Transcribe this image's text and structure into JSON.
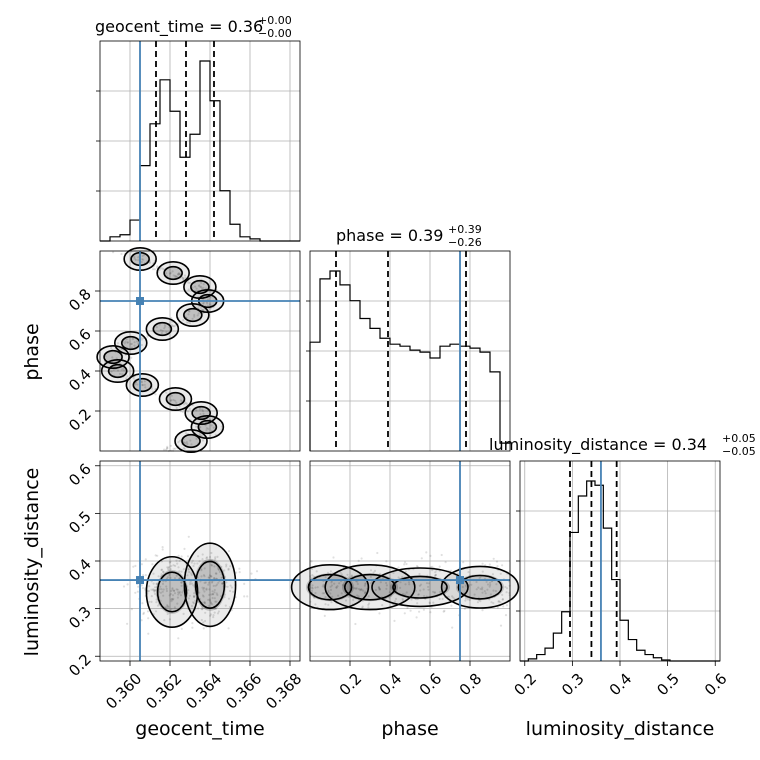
{
  "chart_data": {
    "type": "corner",
    "parameters": [
      "geocent_time",
      "phase",
      "luminosity_distance"
    ],
    "truths": {
      "geocent_time": 0.3605,
      "phase": 0.75,
      "luminosity_distance": 0.36
    },
    "titles": {
      "geocent_time": {
        "text": "geocent_time = 0.36",
        "plus": "+0.00",
        "minus": "−0.00"
      },
      "phase": {
        "text": "phase = 0.39",
        "plus": "+0.39",
        "minus": "−0.26"
      },
      "luminosity_distance": {
        "text": "luminosity_distance = 0.34",
        "plus": "+0.05",
        "minus": "−0.05"
      }
    },
    "axes": {
      "geocent_time": {
        "lim": [
          0.3585,
          0.3685
        ],
        "ticks": [
          0.36,
          0.362,
          0.364,
          0.366,
          0.368
        ],
        "tick_labels": [
          "0.360",
          "0.362",
          "0.364",
          "0.366",
          "0.368"
        ]
      },
      "phase": {
        "lim": [
          0.0,
          1.0
        ],
        "ticks_x": [
          0.2,
          0.4,
          0.6,
          0.8
        ],
        "ticks_y": [
          0.2,
          0.4,
          0.6,
          0.8
        ],
        "tick_labels": [
          "0.2",
          "0.4",
          "0.6",
          "0.8"
        ]
      },
      "luminosity_distance": {
        "lim": [
          0.19,
          0.61
        ],
        "ticks": [
          0.2,
          0.3,
          0.4,
          0.5,
          0.6
        ],
        "tick_labels": [
          "0.2",
          "0.3",
          "0.4",
          "0.5",
          "0.6"
        ]
      }
    },
    "quantiles": {
      "geocent_time": [
        0.3613,
        0.3628,
        0.3642
      ],
      "phase": [
        0.13,
        0.39,
        0.78
      ],
      "luminosity_distance": [
        0.295,
        0.34,
        0.393
      ]
    },
    "histograms": {
      "geocent_time": {
        "edges_start": 0.3585,
        "bin_width": 0.0005,
        "counts": [
          0,
          0.02,
          0.03,
          0.1,
          0.36,
          0.56,
          0.77,
          0.62,
          0.4,
          0.51,
          0.86,
          0.67,
          0.24,
          0.08,
          0.02,
          0.01,
          0,
          0,
          0,
          0
        ]
      },
      "phase": {
        "edges_start": 0.0,
        "bin_width": 0.05,
        "counts": [
          0.55,
          0.87,
          0.91,
          0.84,
          0.76,
          0.67,
          0.62,
          0.57,
          0.54,
          0.53,
          0.51,
          0.5,
          0.47,
          0.53,
          0.54,
          0.53,
          0.52,
          0.5,
          0.4,
          0.04
        ]
      },
      "luminosity_distance": {
        "edges_start": 0.19,
        "bin_width": 0.0175,
        "counts": [
          0,
          0.01,
          0.03,
          0.06,
          0.13,
          0.23,
          0.6,
          0.77,
          0.84,
          0.82,
          0.62,
          0.38,
          0.19,
          0.1,
          0.05,
          0.03,
          0.015,
          0.005,
          0,
          0,
          0,
          0,
          0,
          0
        ]
      }
    },
    "axis_labels": {
      "x": [
        "geocent_time",
        "phase",
        "luminosity_distance"
      ],
      "y": [
        "phase",
        "luminosity_distance"
      ]
    },
    "grid": true
  }
}
